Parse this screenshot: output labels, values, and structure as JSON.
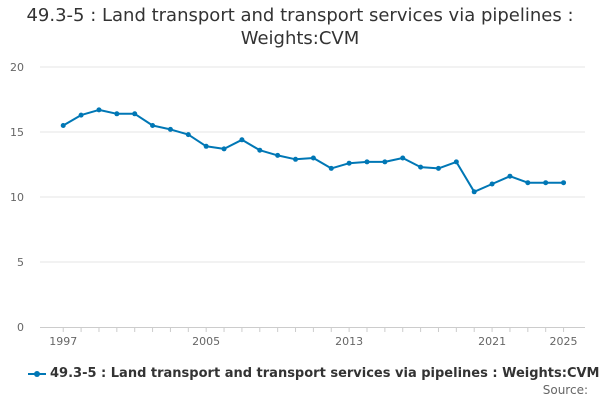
{
  "chart_data": {
    "type": "line",
    "title": "49.3-5 : Land transport and transport services via pipelines : Weights:CVM",
    "title_lines": [
      "49.3-5 : Land transport and transport services via pipelines :",
      "Weights:CVM"
    ],
    "xlabel": "",
    "ylabel": "",
    "x": [
      1997,
      1998,
      1999,
      2000,
      2001,
      2002,
      2003,
      2004,
      2005,
      2006,
      2007,
      2008,
      2009,
      2010,
      2011,
      2012,
      2013,
      2014,
      2015,
      2016,
      2017,
      2018,
      2019,
      2020,
      2021,
      2022,
      2023,
      2024,
      2025
    ],
    "xlim": [
      1997,
      2025
    ],
    "ylim": [
      0,
      20
    ],
    "x_ticks": [
      "1997",
      "2005",
      "2013",
      "2021",
      "2025"
    ],
    "y_ticks": [
      "0",
      "5",
      "10",
      "15",
      "20"
    ],
    "series": [
      {
        "name": "49.3-5 : Land transport and transport services via pipelines : Weights:CVM",
        "values": [
          15.5,
          16.3,
          16.7,
          16.4,
          16.4,
          15.5,
          15.2,
          14.8,
          13.9,
          13.7,
          14.4,
          13.6,
          13.2,
          12.9,
          13.0,
          12.2,
          12.6,
          12.7,
          12.7,
          13.0,
          12.3,
          12.2,
          12.7,
          10.4,
          11.0,
          11.6,
          11.1,
          11.1,
          11.1
        ]
      }
    ],
    "grid": true,
    "legend_position": "bottom-left",
    "line_color": "#0077b5",
    "grid_color": "#e6e6e6",
    "axis_color": "#cccccc"
  },
  "source_label": "Source:"
}
